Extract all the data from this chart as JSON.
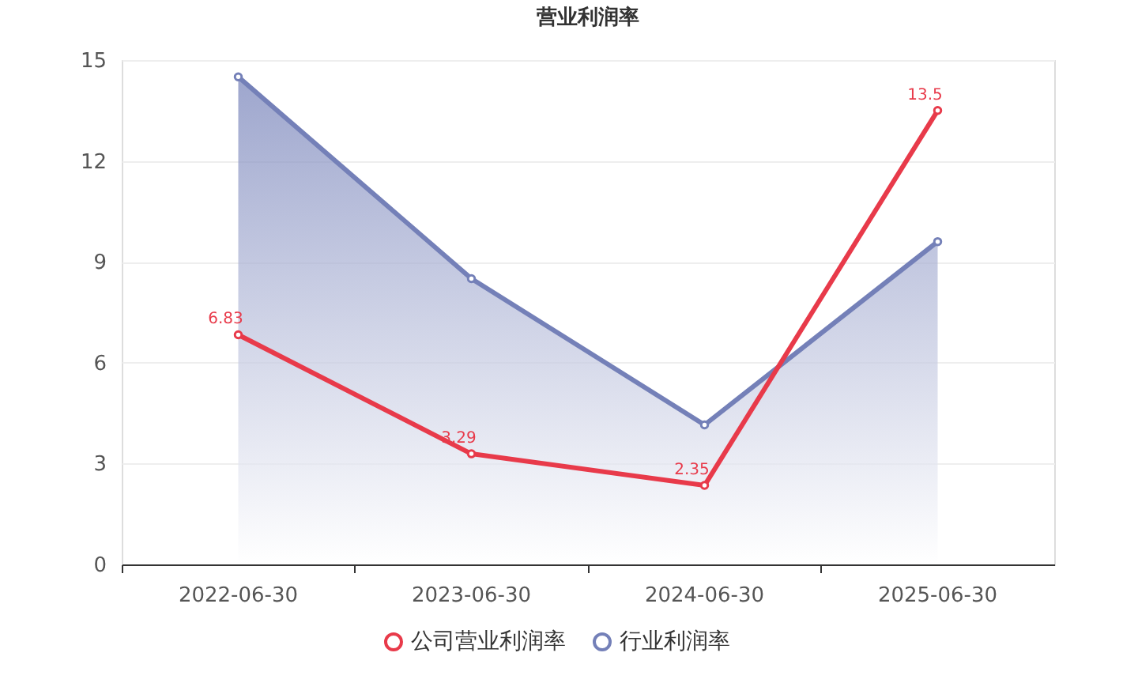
{
  "chart_data": {
    "type": "line",
    "title": "营业利润率",
    "categories": [
      "2022-06-30",
      "2023-06-30",
      "2024-06-30",
      "2025-06-30"
    ],
    "series": [
      {
        "name": "公司营业利润率",
        "color": "#e83a4a",
        "values": [
          6.83,
          3.29,
          2.35,
          13.5
        ],
        "data_labels": true
      },
      {
        "name": "行业利润率",
        "type": "area",
        "color": "#7480b8",
        "values": [
          14.5,
          8.5,
          4.15,
          9.6
        ]
      }
    ],
    "ylim": [
      0,
      15
    ],
    "yticks": [
      0,
      3,
      6,
      9,
      12,
      15
    ],
    "grid": "y",
    "legend": "bottom",
    "marker": "circle"
  }
}
